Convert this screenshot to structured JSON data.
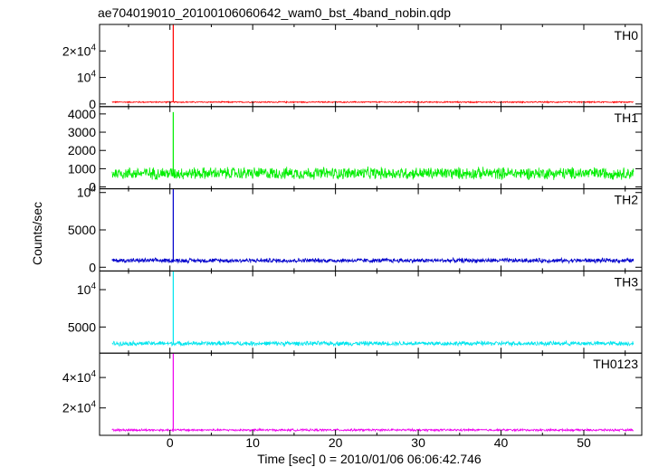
{
  "chart_data": {
    "type": "line",
    "title": "ae704019010_20100106060642_wam0_bst_4band_nobin.qdp",
    "xlabel": "Time [sec] 0 = 2010/01/06 06:06:42.746",
    "ylabel": "Counts/sec",
    "xlim": [
      -8.5,
      57
    ],
    "xticks": [
      {
        "value": 0,
        "label": "0"
      },
      {
        "value": 10,
        "label": "10"
      },
      {
        "value": 20,
        "label": "20"
      },
      {
        "value": 30,
        "label": "30"
      },
      {
        "value": 40,
        "label": "40"
      },
      {
        "value": 50,
        "label": "50"
      }
    ],
    "panels": [
      {
        "name": "TH0",
        "color": "#ff0000",
        "ylim": [
          -1000,
          30000
        ],
        "yticks": [
          {
            "value": 0,
            "label": "0"
          },
          {
            "value": 10000,
            "label": "10",
            "exp": "4"
          },
          {
            "value": 20000,
            "label": "2×10",
            "exp": "4"
          }
        ],
        "baseline": 700,
        "noise": 400,
        "peak_time": 0.4,
        "peak_value": 30000,
        "x": [
          -7,
          0,
          0.4,
          10,
          20,
          30,
          40,
          50,
          56
        ],
        "y": [
          700,
          700,
          30000,
          700,
          700,
          700,
          700,
          700,
          700
        ]
      },
      {
        "name": "TH1",
        "color": "#00ee00",
        "ylim": [
          -100,
          4400
        ],
        "yticks": [
          {
            "value": 0,
            "label": "0"
          },
          {
            "value": 1000,
            "label": "1000"
          },
          {
            "value": 2000,
            "label": "2000"
          },
          {
            "value": 3000,
            "label": "3000"
          },
          {
            "value": 4000,
            "label": "4000"
          }
        ],
        "baseline": 750,
        "noise": 550,
        "peak_time": 0.4,
        "peak_value": 4100,
        "x": [
          -7,
          0,
          0.4,
          10,
          20,
          30,
          40,
          50,
          56
        ],
        "y": [
          750,
          750,
          4100,
          750,
          750,
          750,
          750,
          750,
          750
        ]
      },
      {
        "name": "TH2",
        "color": "#0000cc",
        "ylim": [
          -500,
          10500
        ],
        "yticks": [
          {
            "value": 0,
            "label": "0"
          },
          {
            "value": 5000,
            "label": "5000"
          },
          {
            "value": 10000,
            "label": "10",
            "exp": "4"
          }
        ],
        "baseline": 900,
        "noise": 500,
        "peak_time": 0.4,
        "peak_value": 10500,
        "x": [
          -7,
          0,
          0.4,
          10,
          20,
          30,
          40,
          50,
          56
        ],
        "y": [
          900,
          900,
          10500,
          900,
          900,
          900,
          900,
          900,
          900
        ]
      },
      {
        "name": "TH3",
        "color": "#00e5ee",
        "ylim": [
          1500,
          12500
        ],
        "yticks": [
          {
            "value": 5000,
            "label": "5000"
          },
          {
            "value": 10000,
            "label": "10",
            "exp": "4"
          }
        ],
        "baseline": 2800,
        "noise": 500,
        "peak_time": 0.4,
        "peak_value": 12500,
        "x": [
          -7,
          0,
          0.4,
          10,
          20,
          30,
          40,
          50,
          56
        ],
        "y": [
          2800,
          2800,
          12500,
          2800,
          2800,
          2800,
          2800,
          2800,
          2800
        ]
      },
      {
        "name": "TH0123",
        "color": "#ee00ee",
        "ylim": [
          2000,
          56000
        ],
        "yticks": [
          {
            "value": 20000,
            "label": "2×10",
            "exp": "4"
          },
          {
            "value": 40000,
            "label": "4×10",
            "exp": "4"
          }
        ],
        "baseline": 5500,
        "noise": 1200,
        "peak_time": 0.4,
        "peak_value": 56000,
        "x": [
          -7,
          0,
          0.4,
          10,
          20,
          30,
          40,
          50,
          56
        ],
        "y": [
          5500,
          5500,
          56000,
          5500,
          5500,
          5500,
          5500,
          5500,
          5500
        ]
      }
    ]
  }
}
